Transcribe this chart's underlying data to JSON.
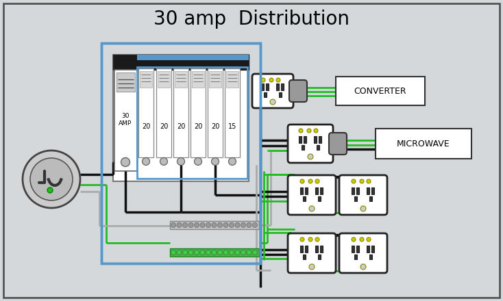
{
  "title": "30 amp  Distribution",
  "title_fontsize": 20,
  "bg_color": "#d4d8db",
  "outer_border_color": "#666666",
  "blue_border": "#5599cc",
  "black_wire": "#111111",
  "green_wire": "#22bb22",
  "gray_wire": "#aaaaaa",
  "white_fill": "#ffffff",
  "panel_gray": "#e0e0e0",
  "converter_label": "CONVERTER",
  "microwave_label": "MICROWAVE",
  "yellow_dot": "#cccc00",
  "breaker_labels_6": [
    "20",
    "20",
    "20",
    "20",
    "20",
    "15"
  ]
}
